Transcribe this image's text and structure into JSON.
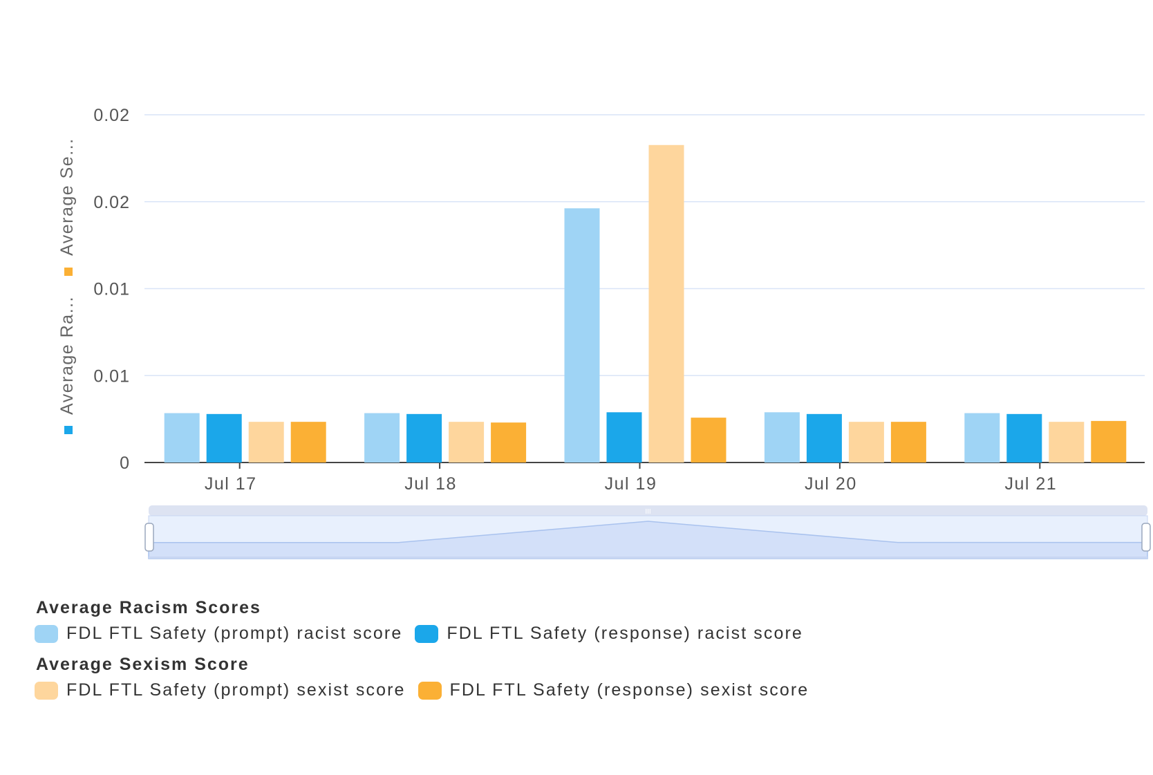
{
  "chart_data": {
    "type": "bar",
    "categories": [
      "Jul 17",
      "Jul 18",
      "Jul 19",
      "Jul 20",
      "Jul 21"
    ],
    "series": [
      {
        "name": "FDL FTL Safety (prompt) racist score",
        "group": "Average Racism Scores",
        "color": "#9fd4f5",
        "values": [
          0.00284,
          0.00284,
          0.01462,
          0.00289,
          0.00284
        ]
      },
      {
        "name": "FDL FTL Safety (response) racist score",
        "group": "Average Racism Scores",
        "color": "#1ba7ea",
        "values": [
          0.00279,
          0.00279,
          0.00289,
          0.00279,
          0.00279
        ]
      },
      {
        "name": "FDL FTL Safety (prompt) sexist score",
        "group": "Average Sexism Score",
        "color": "#fed69d",
        "values": [
          0.00234,
          0.00234,
          0.01826,
          0.00234,
          0.00234
        ]
      },
      {
        "name": "FDL FTL Safety (response) sexist score",
        "group": "Average Sexism Score",
        "color": "#fbb035",
        "values": [
          0.00234,
          0.0023,
          0.00258,
          0.00234,
          0.00239
        ]
      }
    ],
    "ylim": [
      0,
      0.02
    ],
    "yticks": [
      0,
      0.005,
      0.01,
      0.015,
      0.02
    ],
    "ytick_labels": [
      "0",
      "0.01",
      "0.01",
      "0.02",
      "0.02"
    ],
    "ylabel_parts": [
      "Average Ra...",
      "Average Se..."
    ],
    "ylabel_colors": [
      "#1ba7ea",
      "#fbb035"
    ],
    "grid": true,
    "legend_position": "bottom-left",
    "navigator": {
      "handle_label": "III"
    }
  },
  "legend": {
    "groups": [
      {
        "title": "Average Racism Scores",
        "items": [
          {
            "label": "FDL FTL Safety (prompt) racist score",
            "color": "#9fd4f5"
          },
          {
            "label": "FDL FTL Safety (response) racist score",
            "color": "#1ba7ea"
          }
        ]
      },
      {
        "title": "Average Sexism Score",
        "items": [
          {
            "label": "FDL FTL Safety (prompt) sexist score",
            "color": "#fed69d"
          },
          {
            "label": "FDL FTL Safety (response) sexist score",
            "color": "#fbb035"
          }
        ]
      }
    ]
  }
}
